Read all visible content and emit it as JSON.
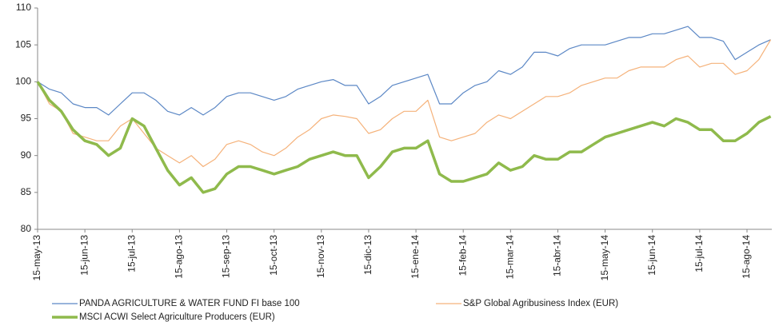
{
  "chart_data": {
    "type": "line",
    "categories": [
      "15-may-13",
      null,
      null,
      null,
      "15-jun-13",
      null,
      null,
      null,
      "15-jul-13",
      null,
      null,
      null,
      "15-ago-13",
      null,
      null,
      null,
      "15-sep-13",
      null,
      null,
      null,
      "15-oct-13",
      null,
      null,
      null,
      "15-nov-13",
      null,
      null,
      null,
      "15-dic-13",
      null,
      null,
      null,
      "15-ene-14",
      null,
      null,
      null,
      "15-feb-14",
      null,
      null,
      null,
      "15-mar-14",
      null,
      null,
      null,
      "15-abr-14",
      null,
      null,
      null,
      "15-may-14",
      null,
      null,
      null,
      "15-jun-14",
      null,
      null,
      null,
      "15-jul-14",
      null,
      null,
      null,
      "15-ago-14",
      null,
      null
    ],
    "series": [
      {
        "name": "PANDA AGRICULTURE & WATER FUND FI base 100",
        "color": "#5b87c5",
        "width": 1.2,
        "values": [
          100,
          99,
          98.5,
          97,
          96.5,
          96.5,
          95.5,
          97,
          98.5,
          98.5,
          97.5,
          96,
          95.5,
          96.5,
          95.5,
          96.5,
          98,
          98.5,
          98.5,
          98,
          97.5,
          98,
          99,
          99.5,
          100,
          100.3,
          99.5,
          99.5,
          97,
          98,
          99.5,
          100,
          100.5,
          101,
          97,
          97,
          98.5,
          99.5,
          100,
          101.5,
          101,
          102,
          104,
          104,
          103.5,
          104.5,
          105,
          105,
          105,
          105.5,
          106,
          106,
          106.5,
          106.5,
          107,
          107.5,
          106,
          106,
          105.5,
          103,
          104,
          105,
          105.7
        ]
      },
      {
        "name": "S&P Global Agribusiness Index (EUR)",
        "color": "#f5b27a",
        "width": 1.2,
        "values": [
          100,
          97,
          96,
          93,
          92.5,
          92,
          92,
          94,
          95,
          93,
          91,
          90,
          89,
          90,
          88.5,
          89.5,
          91.5,
          92,
          91.5,
          90.5,
          90,
          91,
          92.5,
          93.5,
          95,
          95.5,
          95.3,
          95,
          93,
          93.5,
          95,
          96,
          96,
          97.5,
          92.5,
          92,
          92.5,
          93,
          94.5,
          95.5,
          95,
          96,
          97,
          98,
          98,
          98.5,
          99.5,
          100,
          100.5,
          100.5,
          101.5,
          102,
          102,
          102,
          103,
          103.5,
          102,
          102.5,
          102.5,
          101,
          101.5,
          103,
          105.7
        ]
      },
      {
        "name": "MSCI ACWI Select Agriculture Producers (EUR)",
        "color": "#8fba4c",
        "width": 3.5,
        "values": [
          100,
          97.5,
          96,
          93.5,
          92,
          91.5,
          90,
          91,
          95,
          94,
          91,
          88,
          86,
          87,
          85,
          85.5,
          87.5,
          88.5,
          88.5,
          88,
          87.5,
          88,
          88.5,
          89.5,
          90,
          90.5,
          90,
          90,
          87,
          88.5,
          90.5,
          91,
          91,
          92,
          87.5,
          86.5,
          86.5,
          87,
          87.5,
          89,
          88,
          88.5,
          90,
          89.5,
          89.5,
          90.5,
          90.5,
          91.5,
          92.5,
          93,
          93.5,
          94,
          94.5,
          94,
          95,
          94.5,
          93.5,
          93.5,
          92,
          92,
          93,
          94.5,
          95.3
        ]
      }
    ],
    "ylim": [
      80,
      110
    ],
    "yticks": [
      80,
      85,
      90,
      95,
      100,
      105,
      110
    ],
    "grid": false,
    "legend": "bottom"
  }
}
